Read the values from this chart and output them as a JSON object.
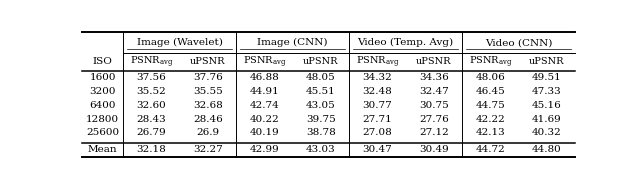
{
  "group_labels": [
    "Image (Wavelet)",
    "Image (CNN)",
    "Video (Temp. Avg)",
    "Video (CNN)"
  ],
  "iso_rows": [
    [
      "1600",
      "37.56",
      "37.76",
      "46.88",
      "48.05",
      "34.32",
      "34.36",
      "48.06",
      "49.51"
    ],
    [
      "3200",
      "35.52",
      "35.55",
      "44.91",
      "45.51",
      "32.48",
      "32.47",
      "46.45",
      "47.33"
    ],
    [
      "6400",
      "32.60",
      "32.68",
      "42.74",
      "43.05",
      "30.77",
      "30.75",
      "44.75",
      "45.16"
    ],
    [
      "12800",
      "28.43",
      "28.46",
      "40.22",
      "39.75",
      "27.71",
      "27.76",
      "42.22",
      "41.69"
    ],
    [
      "25600",
      "26.79",
      "26.9",
      "40.19",
      "38.78",
      "27.08",
      "27.12",
      "42.13",
      "40.32"
    ]
  ],
  "mean_row": [
    "Mean",
    "32.18",
    "32.27",
    "42.99",
    "43.03",
    "30.47",
    "30.49",
    "44.72",
    "44.80"
  ],
  "fontsize": 7.5,
  "small_fontsize": 7.0,
  "fig_width": 6.4,
  "fig_height": 1.85,
  "bg_color": "white"
}
